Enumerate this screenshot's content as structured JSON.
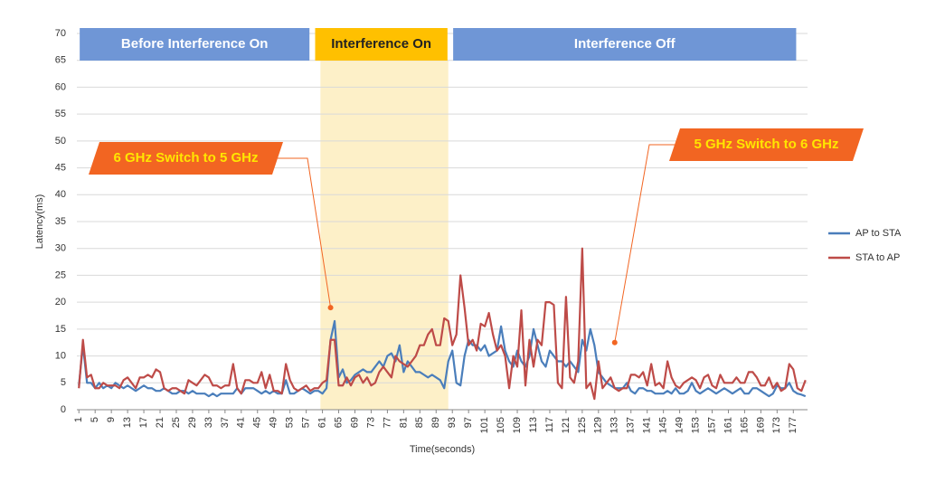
{
  "chart_data": {
    "type": "line",
    "ylabel": "Latency(ms)",
    "xlabel": "Time(seconds)",
    "xlim": [
      0.5,
      180.5
    ],
    "ylim": [
      0,
      70
    ],
    "yticks": [
      0,
      5,
      10,
      15,
      20,
      25,
      30,
      35,
      40,
      45,
      50,
      55,
      60,
      65,
      70
    ],
    "xticks": [
      1,
      5,
      9,
      13,
      17,
      21,
      25,
      29,
      33,
      37,
      41,
      45,
      49,
      53,
      57,
      61,
      65,
      69,
      73,
      77,
      81,
      85,
      89,
      93,
      97,
      101,
      105,
      109,
      113,
      117,
      121,
      125,
      129,
      133,
      137,
      141,
      145,
      149,
      153,
      157,
      161,
      165,
      169,
      173,
      177
    ],
    "grid": true,
    "legend": "right",
    "x": [
      1,
      2,
      3,
      4,
      5,
      6,
      7,
      8,
      9,
      10,
      11,
      12,
      13,
      14,
      15,
      16,
      17,
      18,
      19,
      20,
      21,
      22,
      23,
      24,
      25,
      26,
      27,
      28,
      29,
      30,
      31,
      32,
      33,
      34,
      35,
      36,
      37,
      38,
      39,
      40,
      41,
      42,
      43,
      44,
      45,
      46,
      47,
      48,
      49,
      50,
      51,
      52,
      53,
      54,
      55,
      56,
      57,
      58,
      59,
      60,
      61,
      62,
      63,
      64,
      65,
      66,
      67,
      68,
      69,
      70,
      71,
      72,
      73,
      74,
      75,
      76,
      77,
      78,
      79,
      80,
      81,
      82,
      83,
      84,
      85,
      86,
      87,
      88,
      89,
      90,
      91,
      92,
      93,
      94,
      95,
      96,
      97,
      98,
      99,
      100,
      101,
      102,
      103,
      104,
      105,
      106,
      107,
      108,
      109,
      110,
      111,
      112,
      113,
      114,
      115,
      116,
      117,
      118,
      119,
      120,
      121,
      122,
      123,
      124,
      125,
      126,
      127,
      128,
      129,
      130,
      131,
      132,
      133,
      134,
      135,
      136,
      137,
      138,
      139,
      140,
      141,
      142,
      143,
      144,
      145,
      146,
      147,
      148,
      149,
      150,
      151,
      152,
      153,
      154,
      155,
      156,
      157,
      158,
      159,
      160,
      161,
      162,
      163,
      164,
      165,
      166,
      167,
      168,
      169,
      170,
      171,
      172,
      173,
      174,
      175,
      176,
      177,
      178,
      179,
      180
    ],
    "series": [
      {
        "name": "AP to STA",
        "color": "#4a7ebb",
        "values": [
          4.5,
          12,
          5,
          5,
          4,
          5,
          4,
          4.5,
          4,
          5,
          4.5,
          4,
          4.5,
          4,
          3.5,
          4,
          4.5,
          4,
          4,
          3.5,
          3.5,
          4,
          3.5,
          3,
          3,
          3.5,
          3.5,
          3,
          3.5,
          3,
          3,
          3,
          2.5,
          3,
          2.5,
          3,
          3,
          3,
          3,
          4,
          3,
          4,
          4,
          4,
          3.5,
          3,
          3.5,
          3,
          3.5,
          3,
          3,
          5.5,
          3,
          3,
          3.5,
          4,
          3.5,
          3,
          3.5,
          3.5,
          3,
          4,
          13,
          16.5,
          6,
          7.5,
          5,
          5.5,
          6.5,
          7,
          7.5,
          7,
          7,
          8,
          9,
          8,
          10,
          10.5,
          9,
          12,
          7,
          9,
          8,
          7,
          7,
          6.5,
          6,
          6.5,
          6,
          5.5,
          4,
          9,
          11,
          5,
          4.5,
          10,
          13,
          12,
          12,
          11,
          12,
          10,
          10.5,
          11,
          15.5,
          11,
          9,
          8,
          11,
          9,
          8,
          10,
          15,
          12,
          9,
          8,
          11,
          10,
          9,
          9,
          8,
          9,
          8,
          7,
          13,
          11,
          15,
          12,
          7,
          6,
          5,
          4.5,
          4,
          4,
          4,
          5,
          3.5,
          3,
          4,
          4,
          3.5,
          3.5,
          3,
          3,
          3,
          3.5,
          3,
          4,
          3,
          3,
          3.5,
          5,
          3.5,
          3,
          3.5,
          4,
          3.5,
          3,
          3.5,
          4,
          3.5,
          3,
          3.5,
          4,
          3,
          3,
          4,
          4,
          3.5,
          3,
          2.5,
          3,
          4.5,
          4,
          4,
          5,
          3.5,
          3,
          2.8,
          2.5
        ]
      },
      {
        "name": "STA to AP",
        "color": "#be4b48",
        "values": [
          4,
          13,
          6,
          6.5,
          4,
          4,
          5,
          4.5,
          4.5,
          4.5,
          4,
          5.5,
          6,
          5,
          4,
          6,
          6,
          6.5,
          6,
          7.5,
          7,
          4,
          3.5,
          4,
          4,
          3.5,
          3,
          5.5,
          5,
          4.5,
          5.5,
          6.5,
          6,
          4.5,
          4.5,
          4,
          4.5,
          4.5,
          8.5,
          4,
          3,
          5.5,
          5.5,
          5,
          5,
          7,
          4,
          6.5,
          3.5,
          3.5,
          3,
          8.5,
          5.5,
          4,
          3.5,
          4,
          4.5,
          3.5,
          4,
          4,
          5,
          5.5,
          13,
          13,
          4.5,
          4.5,
          6,
          4.5,
          6,
          6.5,
          5,
          6,
          4.5,
          5,
          7,
          8,
          7,
          6,
          10,
          9,
          8.5,
          8,
          9,
          10,
          12,
          12,
          14,
          15,
          12,
          12,
          17,
          16.5,
          12,
          14,
          25,
          19,
          12,
          13,
          11,
          16,
          15.5,
          18,
          14,
          11,
          12,
          10,
          4,
          10,
          8,
          18.5,
          4.5,
          13,
          8,
          13,
          12,
          20,
          20,
          19.5,
          5,
          4,
          21,
          6,
          5,
          9,
          30,
          4,
          5,
          2,
          9,
          4,
          5,
          6,
          4,
          3.5,
          4,
          4,
          6.5,
          6.5,
          6,
          7,
          4.5,
          8.5,
          4.5,
          5,
          4,
          9,
          6,
          4.5,
          4,
          5,
          5.5,
          6,
          5.5,
          4,
          6,
          6.5,
          4.5,
          4,
          6.5,
          5,
          5,
          5,
          6,
          5,
          5,
          7,
          7,
          6,
          4.5,
          4.5,
          6,
          4,
          5,
          3.5,
          4,
          8.5,
          7.5,
          4,
          3.5,
          5.5
        ]
      }
    ],
    "shaded_span": {
      "start": 60.5,
      "end": 92,
      "color": "#fdf0c8"
    },
    "phases": [
      {
        "label": "Before Interference On",
        "start": 1.2,
        "end": 57.8,
        "color": "#6f96d6"
      },
      {
        "label": "Interference On",
        "start": 59.2,
        "end": 91.8,
        "color": "#ffc000"
      },
      {
        "label": "Interference Off",
        "start": 93.2,
        "end": 177.7,
        "color": "#6f96d6"
      }
    ],
    "annotations": [
      {
        "text": "6 GHz Switch to 5 GHz",
        "x": 63,
        "y": 19
      },
      {
        "text": "5 GHz Switch to 6 GHz",
        "x": 133,
        "y": 12.5
      }
    ]
  }
}
